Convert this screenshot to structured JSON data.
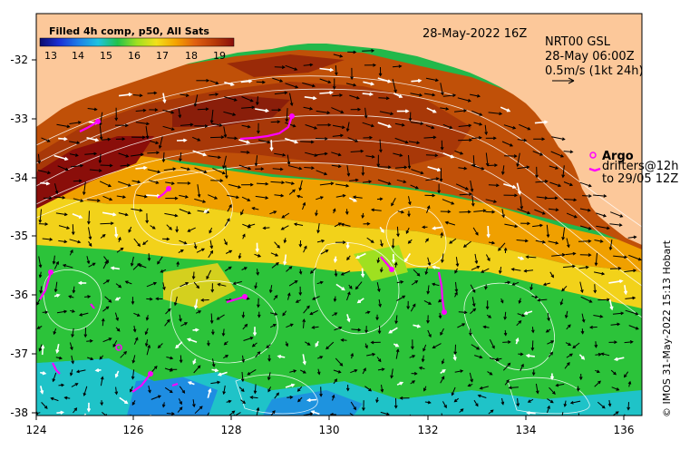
{
  "title": {
    "date": "28-May-2022 16Z",
    "product": "NRT00 GSL",
    "product_date": "28-May 06:00Z",
    "scale": "0.5m/s (1kt 24h)"
  },
  "colorbar": {
    "title": "Filled 4h comp, p50, All Sats",
    "ticks": [
      "13",
      "14",
      "15",
      "16",
      "17",
      "18",
      "19"
    ],
    "colors": [
      "#0a0a6e",
      "#1a2fd6",
      "#1e7fe8",
      "#1fc3e0",
      "#22c24a",
      "#9fe020",
      "#f2e01a",
      "#f5a300",
      "#e06010",
      "#b83a08",
      "#8a0e0a"
    ]
  },
  "axes": {
    "x_ticks": [
      "124",
      "126",
      "128",
      "130",
      "132",
      "134",
      "136"
    ],
    "y_ticks": [
      "-32",
      "-33",
      "-34",
      "-35",
      "-36",
      "-37",
      "-38"
    ]
  },
  "legend": {
    "argo": "Argo",
    "drifters_line1": "drifters@12h",
    "drifters_line2": "to 29/05 12Z"
  },
  "credit": "© IMOS 31-May-2022 15:13 Hobart",
  "colors": {
    "land": "#fcc89a",
    "drifter": "#ff00ff",
    "current_arrow_dark": "#000000",
    "current_arrow_light": "#ffffff"
  }
}
